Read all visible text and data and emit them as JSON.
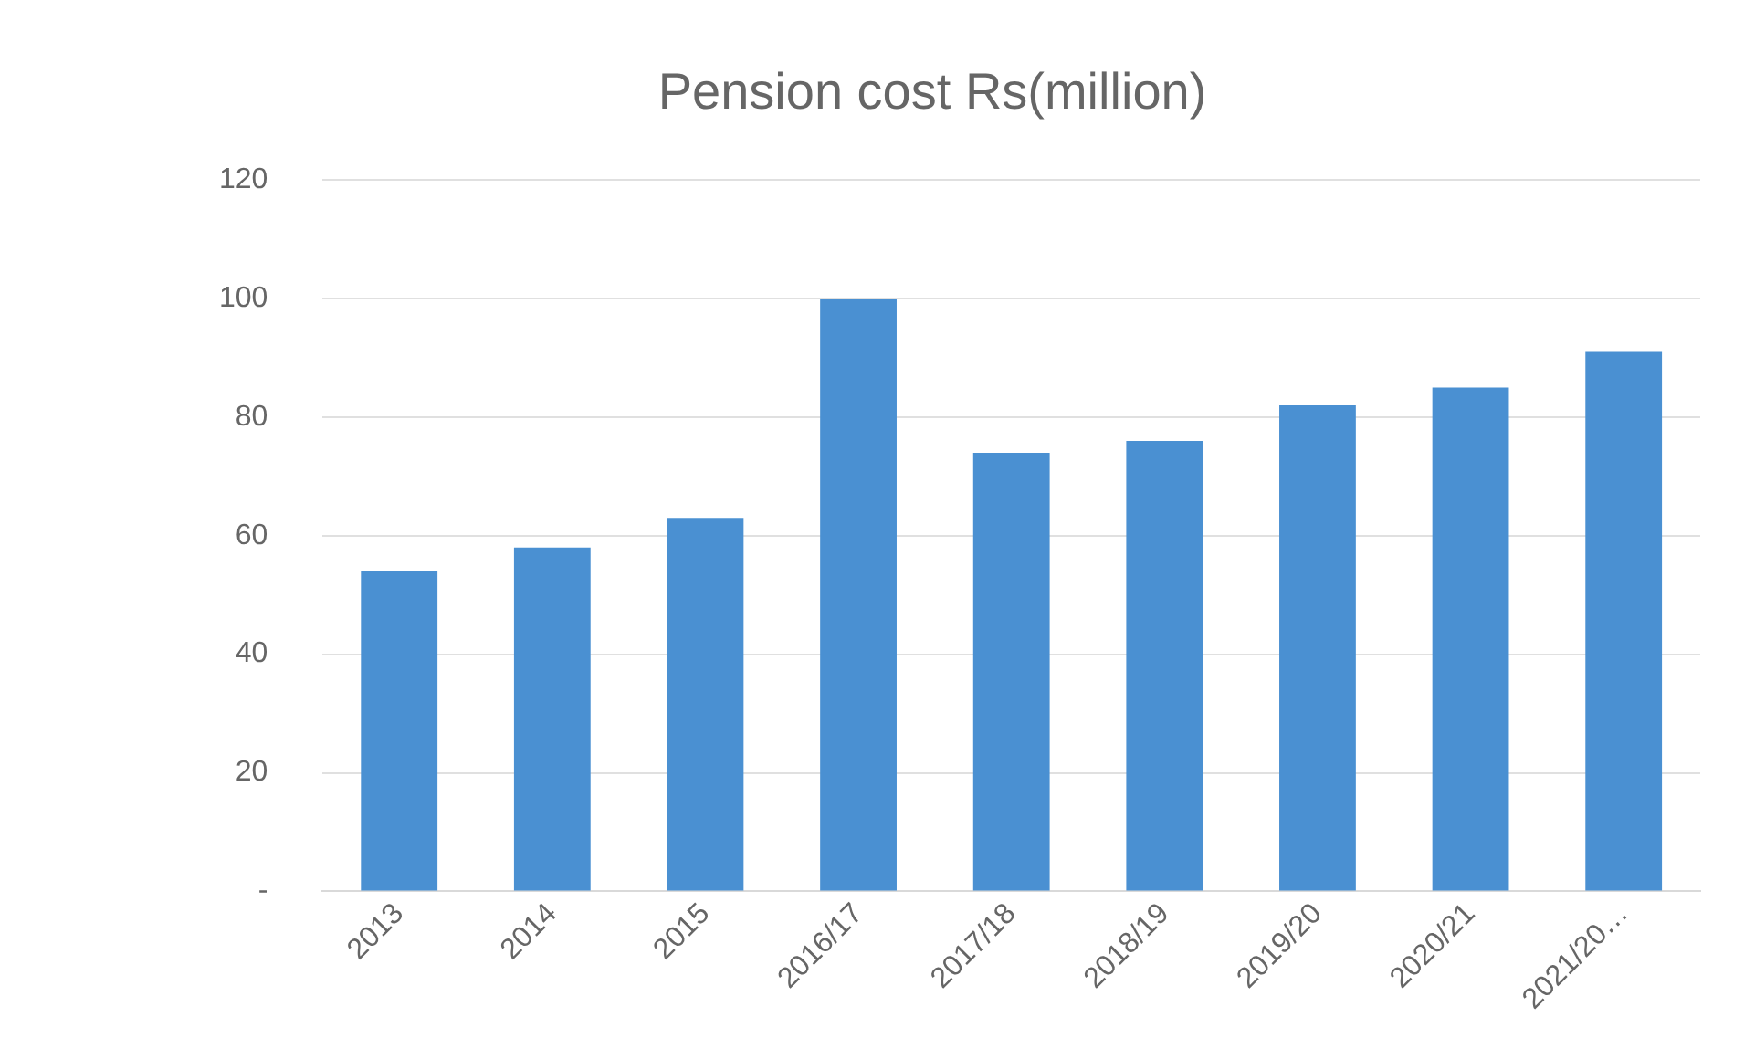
{
  "chart_data": {
    "type": "bar",
    "title": "Pension cost Rs(million)",
    "categories": [
      "2013",
      "2014",
      "2015",
      "2016/17",
      "2017/18",
      "2018/19",
      "2019/20",
      "2020/21",
      "2021/20…"
    ],
    "values": [
      54,
      58,
      63,
      100,
      74,
      76,
      82,
      85,
      91
    ],
    "color": "#4a90d2",
    "ylim": [
      0,
      120
    ],
    "yticks": [
      {
        "value": 0,
        "label": "-"
      },
      20,
      40,
      60,
      80,
      100,
      120
    ],
    "grid": "y",
    "legend": false
  }
}
